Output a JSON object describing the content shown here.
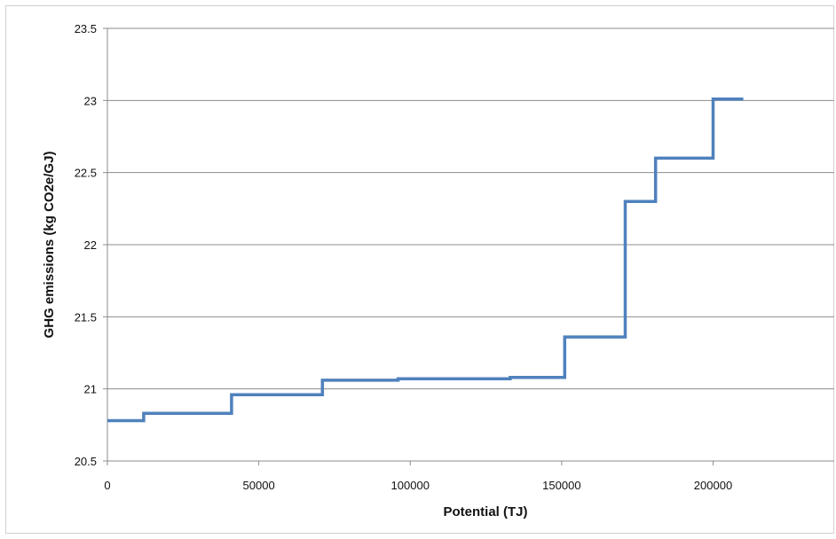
{
  "chart_data": {
    "type": "line",
    "step": true,
    "title": "",
    "xlabel": "Potential (TJ)",
    "ylabel": "GHG emissions (kg CO2e/GJ)",
    "xlim": [
      0,
      240000
    ],
    "ylim": [
      20.5,
      23.5
    ],
    "xticks": [
      0,
      50000,
      100000,
      150000,
      200000
    ],
    "xtick_labels": [
      "0",
      "50000",
      "100000",
      "150000",
      "200000"
    ],
    "yticks": [
      20.5,
      21,
      21.5,
      22,
      22.5,
      23,
      23.5
    ],
    "ytick_labels": [
      "20.5",
      "21",
      "21.5",
      "22",
      "22.5",
      "23",
      "23.5"
    ],
    "grid": "horizontal",
    "legend": "none",
    "series": [
      {
        "color": "#4f81bd",
        "x": [
          0,
          12000,
          12000,
          41000,
          41000,
          71000,
          71000,
          96000,
          96000,
          133000,
          133000,
          151000,
          151000,
          171000,
          171000,
          181000,
          181000,
          200000,
          200000,
          210000
        ],
        "y": [
          20.78,
          20.78,
          20.83,
          20.83,
          20.96,
          20.96,
          21.06,
          21.06,
          21.07,
          21.07,
          21.08,
          21.08,
          21.36,
          21.36,
          22.3,
          22.3,
          22.6,
          22.6,
          23.01,
          23.01
        ]
      }
    ]
  }
}
